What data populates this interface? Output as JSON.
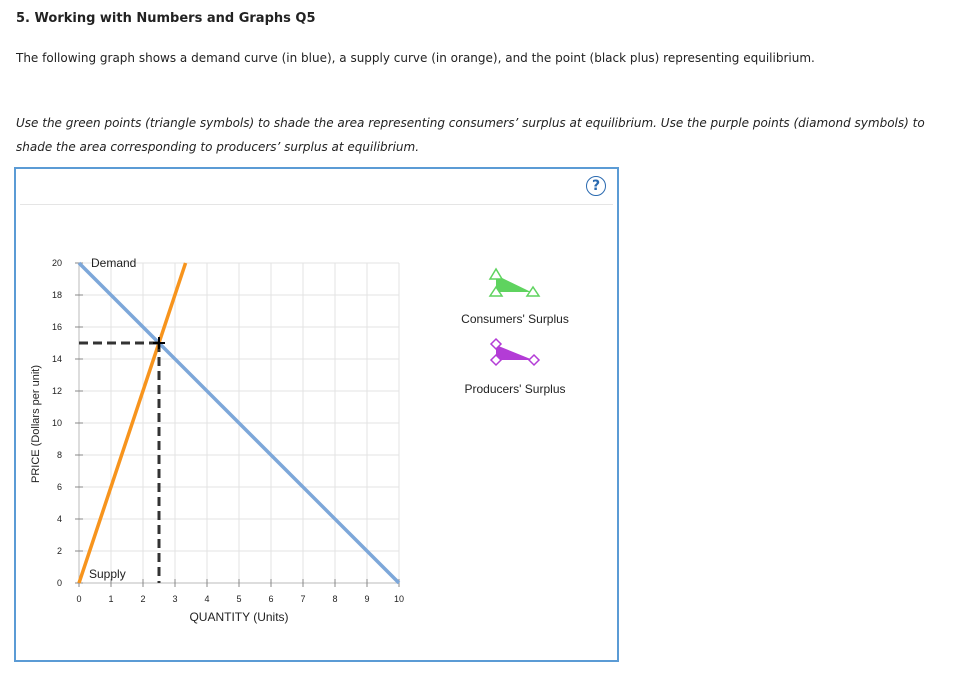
{
  "header": {
    "title": "5. Working with Numbers and Graphs Q5",
    "intro": "The following graph shows a demand curve (in blue), a supply curve (in orange), and the point (black plus) representing equilibrium.",
    "instructions": "Use the green points (triangle symbols) to shade the area representing consumers’ surplus at equilibrium. Use the purple points (diamond symbols) to shade the area corresponding to producers’ surplus at equilibrium."
  },
  "help": {
    "label": "?"
  },
  "palette": {
    "title": "Consumers' Surplus",
    "consumers_label": "Consumers' Surplus",
    "producers_label": "Producers' Surplus",
    "consumers_color": "#5fd35f",
    "producers_color": "#b33cd6"
  },
  "chart_data": {
    "type": "line",
    "xlabel": "QUANTITY (Units)",
    "ylabel": "PRICE (Dollars per unit)",
    "xlim": [
      0,
      10
    ],
    "ylim": [
      0,
      20
    ],
    "x_ticks": [
      0,
      1,
      2,
      3,
      4,
      5,
      6,
      7,
      8,
      9,
      10
    ],
    "y_ticks": [
      0,
      2,
      4,
      6,
      8,
      10,
      12,
      14,
      16,
      18,
      20
    ],
    "grid": true,
    "series": [
      {
        "name": "Demand",
        "color": "#7da7d9",
        "points": [
          [
            0,
            20
          ],
          [
            10,
            0
          ]
        ]
      },
      {
        "name": "Supply",
        "color": "#f7941d",
        "points": [
          [
            0,
            0
          ],
          [
            3.33,
            20
          ]
        ]
      }
    ],
    "equilibrium": {
      "x": 2.5,
      "y": 15,
      "marker": "black-plus"
    }
  }
}
